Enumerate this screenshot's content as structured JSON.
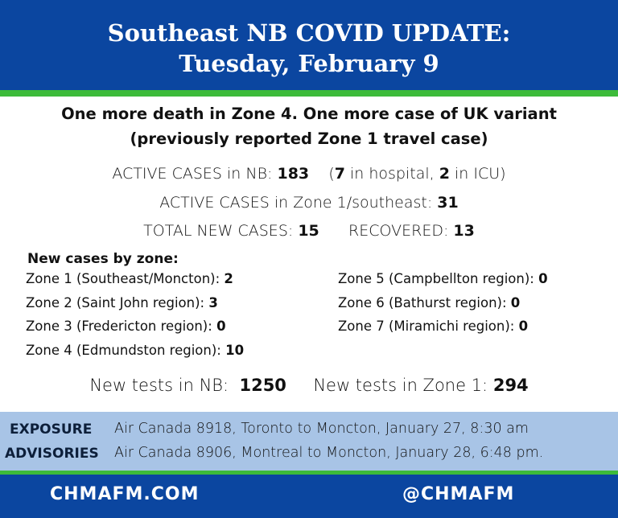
{
  "header": {
    "title": [
      "Southeast NB COVID UPDATE:",
      "Tuesday, February 9"
    ]
  },
  "headline": [
    "One more death in Zone 4. One more case of UK variant",
    "(previously reported Zone 1 travel case)"
  ],
  "active_nb": {
    "label": "ACTIVE CASES in NB:",
    "value": 183,
    "open": "(",
    "hospital": 7,
    "hospital_label": "in hospital,",
    "icu": 2,
    "icu_label": "in ICU)"
  },
  "active_zone1": {
    "label": "ACTIVE CASES in Zone 1/southeast:",
    "value": 31
  },
  "totals": {
    "new_label": "TOTAL NEW CASES:",
    "new": 15,
    "recovered_label": "RECOVERED:",
    "recovered": 13
  },
  "zones": {
    "title": "New cases by zone:",
    "left": [
      {
        "label": "Zone 1 (Southeast/Moncton):",
        "value": 2
      },
      {
        "label": "Zone 2 (Saint John region):",
        "value": 3
      },
      {
        "label": "Zone 3 (Fredericton region):",
        "value": 0
      },
      {
        "label": "Zone 4 (Edmundston region):",
        "value": 10
      }
    ],
    "right": [
      {
        "label": "Zone 5 (Campbellton region):",
        "value": 0
      },
      {
        "label": "Zone 6 (Bathurst region):",
        "value": 0
      },
      {
        "label": "Zone 7 (Miramichi region):",
        "value": 0
      }
    ]
  },
  "tests": {
    "nb_label": "New tests in NB:",
    "nb": 1250,
    "zone1_label": "New tests in Zone 1:",
    "zone1": 294
  },
  "exposure": {
    "title": [
      "EXPOSURE",
      "ADVISORIES"
    ],
    "items": [
      "Air Canada 8918, Toronto to Moncton, January 27, 8:30 am",
      "Air Canada 8906, Montreal to Moncton, January 28, 6:48 pm."
    ]
  },
  "footer": {
    "website": "CHMAFM.COM",
    "handle": "@CHMAFM"
  }
}
